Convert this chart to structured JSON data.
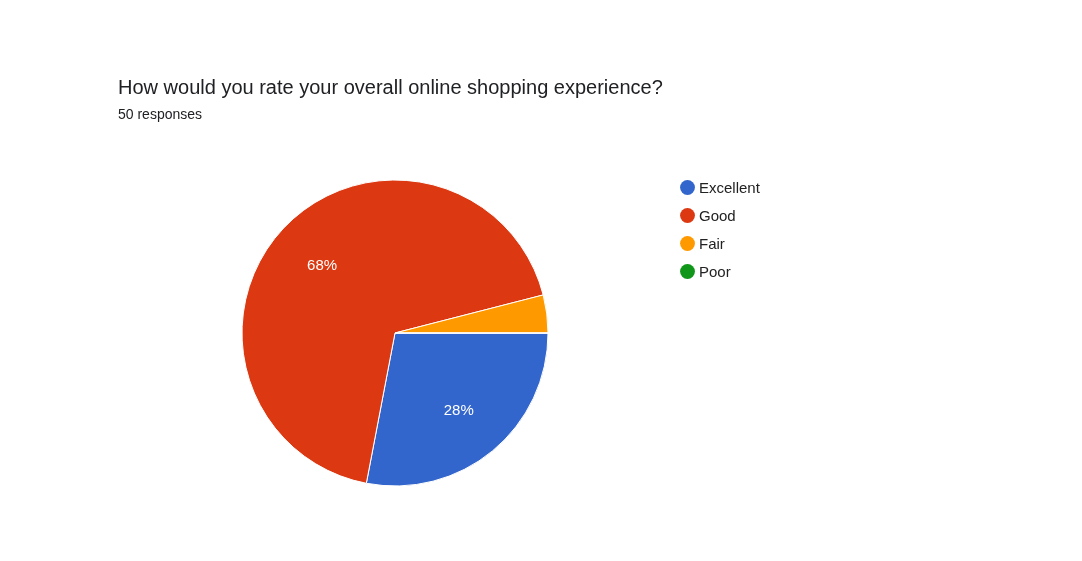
{
  "chart_data": {
    "type": "pie",
    "title": "How would you rate your overall online shopping experience?",
    "subtitle": "50 responses",
    "categories": [
      "Excellent",
      "Good",
      "Fair",
      "Poor"
    ],
    "values": [
      28,
      68,
      4,
      0
    ],
    "colors": [
      "#3366cc",
      "#dc3912",
      "#ff9900",
      "#109618"
    ],
    "value_labels": [
      "28%",
      "68%",
      null,
      null
    ],
    "legend": "right"
  }
}
